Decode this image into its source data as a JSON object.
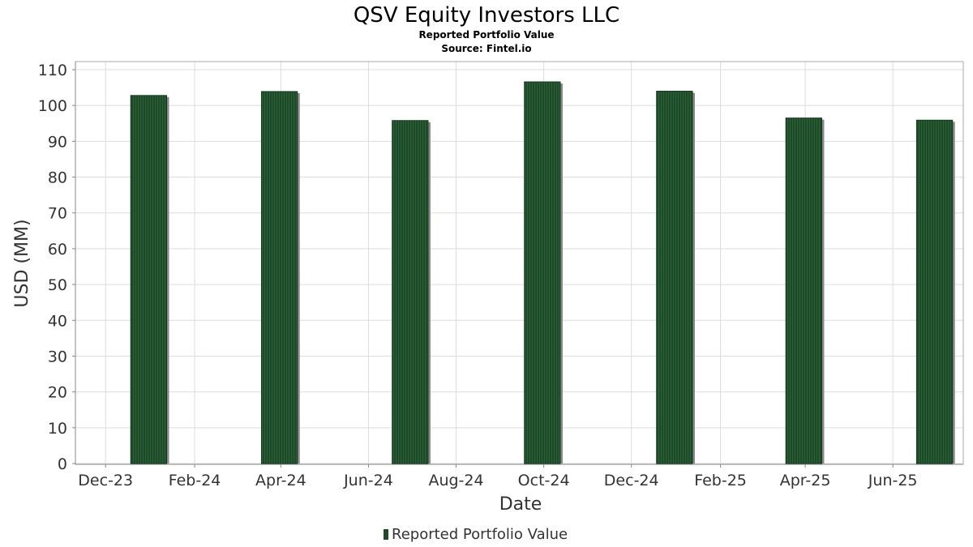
{
  "chart_data": {
    "type": "bar",
    "title": "QSV Equity Investors LLC",
    "subtitle": "Reported Portfolio Value",
    "source": "Source: Fintel.io",
    "xlabel": "Date",
    "ylabel": "USD (MM)",
    "x_domain": [
      "2023-11-10",
      "2025-07-20"
    ],
    "ylim": [
      0,
      110
    ],
    "y_ticks": [
      0,
      10,
      20,
      30,
      40,
      50,
      60,
      70,
      80,
      90,
      100,
      110
    ],
    "x_ticks": [
      {
        "date": "2023-12-01",
        "label": "Dec-23"
      },
      {
        "date": "2024-02-01",
        "label": "Feb-24"
      },
      {
        "date": "2024-04-01",
        "label": "Apr-24"
      },
      {
        "date": "2024-06-01",
        "label": "Jun-24"
      },
      {
        "date": "2024-08-01",
        "label": "Aug-24"
      },
      {
        "date": "2024-10-01",
        "label": "Oct-24"
      },
      {
        "date": "2024-12-01",
        "label": "Dec-24"
      },
      {
        "date": "2025-02-01",
        "label": "Feb-25"
      },
      {
        "date": "2025-04-01",
        "label": "Apr-25"
      },
      {
        "date": "2025-06-01",
        "label": "Jun-25"
      }
    ],
    "bar_width_days": 25,
    "grid": true,
    "legend_position": "bottom-center",
    "series": [
      {
        "name": "Reported Portfolio Value",
        "color": "#1e4a28",
        "points": [
          {
            "date": "2023-12-31",
            "value": 102.8
          },
          {
            "date": "2024-03-31",
            "value": 103.9
          },
          {
            "date": "2024-06-30",
            "value": 95.8
          },
          {
            "date": "2024-09-30",
            "value": 106.6
          },
          {
            "date": "2024-12-31",
            "value": 104.0
          },
          {
            "date": "2025-03-31",
            "value": 96.5
          },
          {
            "date": "2025-06-30",
            "value": 95.9
          }
        ]
      }
    ]
  }
}
